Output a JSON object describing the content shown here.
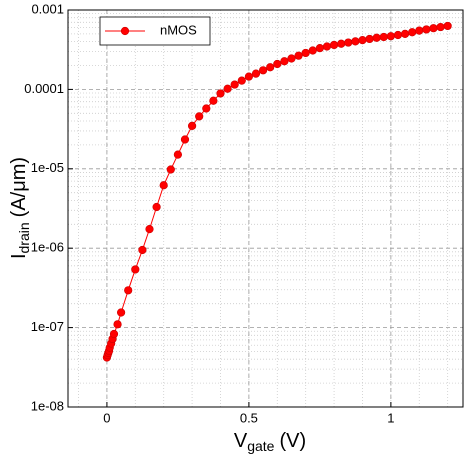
{
  "chart_data": {
    "type": "line",
    "xlabel": {
      "main": "V",
      "sub": "gate",
      "unit": "(V)"
    },
    "ylabel": {
      "main": "I",
      "sub": "drain",
      "unit": "(A/μm)"
    },
    "x": [
      0,
      0.0025,
      0.005,
      0.0075,
      0.01,
      0.015,
      0.02,
      0.025,
      0.0375,
      0.05,
      0.075,
      0.1,
      0.125,
      0.15,
      0.175,
      0.2,
      0.225,
      0.25,
      0.275,
      0.3,
      0.325,
      0.35,
      0.375,
      0.4,
      0.425,
      0.45,
      0.475,
      0.5,
      0.525,
      0.55,
      0.575,
      0.6,
      0.625,
      0.65,
      0.675,
      0.7,
      0.725,
      0.75,
      0.775,
      0.8,
      0.825,
      0.85,
      0.875,
      0.9,
      0.925,
      0.95,
      0.975,
      1.0,
      1.025,
      1.05,
      1.075,
      1.1,
      1.125,
      1.15,
      1.175,
      1.2
    ],
    "series": [
      {
        "name": "nMOS",
        "color": "#ff0000",
        "values": [
          4.2e-08,
          4.5e-08,
          4.8e-08,
          5.1e-08,
          5.6e-08,
          6.3e-08,
          7.2e-08,
          8.3e-08,
          1.1e-07,
          1.55e-07,
          2.95e-07,
          5.4e-07,
          9.5e-07,
          1.74e-06,
          3.3e-06,
          6.2e-06,
          9.8e-06,
          1.51e-05,
          2.34e-05,
          3.47e-05,
          4.57e-05,
          5.75e-05,
          7.2e-05,
          8.9e-05,
          0.000102,
          0.000115,
          0.000129,
          0.000145,
          0.000158,
          0.000174,
          0.00019,
          0.000209,
          0.000226,
          0.000245,
          0.000266,
          0.000288,
          0.000309,
          0.000331,
          0.000347,
          0.000363,
          0.000376,
          0.000389,
          0.000403,
          0.000417,
          0.000432,
          0.000447,
          0.000457,
          0.000468,
          0.000484,
          0.0005,
          0.000525,
          0.00055,
          0.000569,
          0.00059,
          0.00061,
          0.00063
        ]
      }
    ],
    "xlim": [
      -0.137,
      1.254
    ],
    "ylim": [
      1e-08,
      0.001
    ],
    "xticks": [
      0,
      0.5,
      1
    ],
    "yticks": [
      {
        "value": 1e-08,
        "label": "1e-08"
      },
      {
        "value": 1e-07,
        "label": "1e-07"
      },
      {
        "value": 1e-06,
        "label": "1e-06"
      },
      {
        "value": 1e-05,
        "label": "1e-05"
      },
      {
        "value": 0.0001,
        "label": "0.0001"
      },
      {
        "value": 0.001,
        "label": "0.001"
      }
    ],
    "ylog": true,
    "grid": true,
    "minor_grid": true,
    "legend": "upper left"
  }
}
